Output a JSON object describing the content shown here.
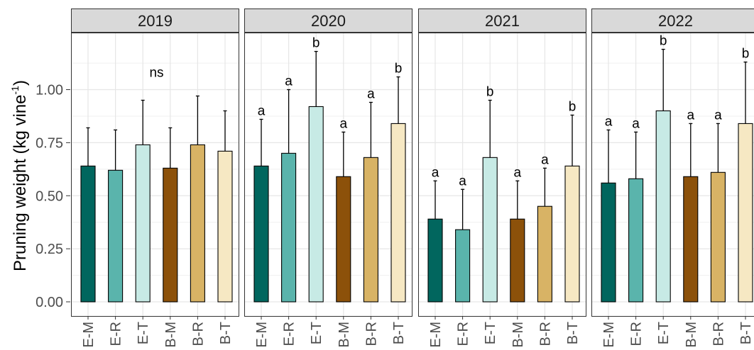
{
  "chart_data": {
    "type": "bar",
    "ylabel_main": "Pruning weight (kg vine",
    "ylabel_sup": "-1",
    "ylabel_close": ")",
    "ylim": [
      -0.05,
      1.3
    ],
    "yticks": [
      0.0,
      0.25,
      0.5,
      0.75,
      1.0
    ],
    "ytick_labels": [
      "0.00",
      "0.25",
      "0.50",
      "0.75",
      "1.00"
    ],
    "categories": [
      "E-M",
      "E-R",
      "E-T",
      "B-M",
      "B-R",
      "B-T"
    ],
    "colors": [
      "#01665e",
      "#5ab4ac",
      "#c7eae5",
      "#8c510a",
      "#d8b365",
      "#f6e8c3"
    ],
    "grid": true,
    "facets": [
      {
        "title": "2019",
        "values": [
          0.64,
          0.62,
          0.74,
          0.63,
          0.74,
          0.71
        ],
        "errors": [
          0.82,
          0.81,
          0.95,
          0.82,
          0.97,
          0.9
        ],
        "labels": [
          "",
          "",
          "",
          "",
          "",
          ""
        ],
        "panel_label": "ns"
      },
      {
        "title": "2020",
        "values": [
          0.64,
          0.7,
          0.92,
          0.59,
          0.68,
          0.84
        ],
        "errors": [
          0.86,
          1.0,
          1.18,
          0.8,
          0.94,
          1.06
        ],
        "labels": [
          "a",
          "a",
          "b",
          "a",
          "a",
          "b"
        ],
        "panel_label": ""
      },
      {
        "title": "2021",
        "values": [
          0.39,
          0.34,
          0.68,
          0.39,
          0.45,
          0.64
        ],
        "errors": [
          0.57,
          0.53,
          0.95,
          0.57,
          0.63,
          0.88
        ],
        "labels": [
          "a",
          "a",
          "b",
          "a",
          "a",
          "b"
        ],
        "panel_label": ""
      },
      {
        "title": "2022",
        "values": [
          0.56,
          0.58,
          0.9,
          0.59,
          0.61,
          0.84
        ],
        "errors": [
          0.81,
          0.8,
          1.19,
          0.84,
          0.84,
          1.13
        ],
        "labels": [
          "a",
          "a",
          "b",
          "a",
          "a",
          "b"
        ],
        "panel_label": ""
      }
    ]
  }
}
